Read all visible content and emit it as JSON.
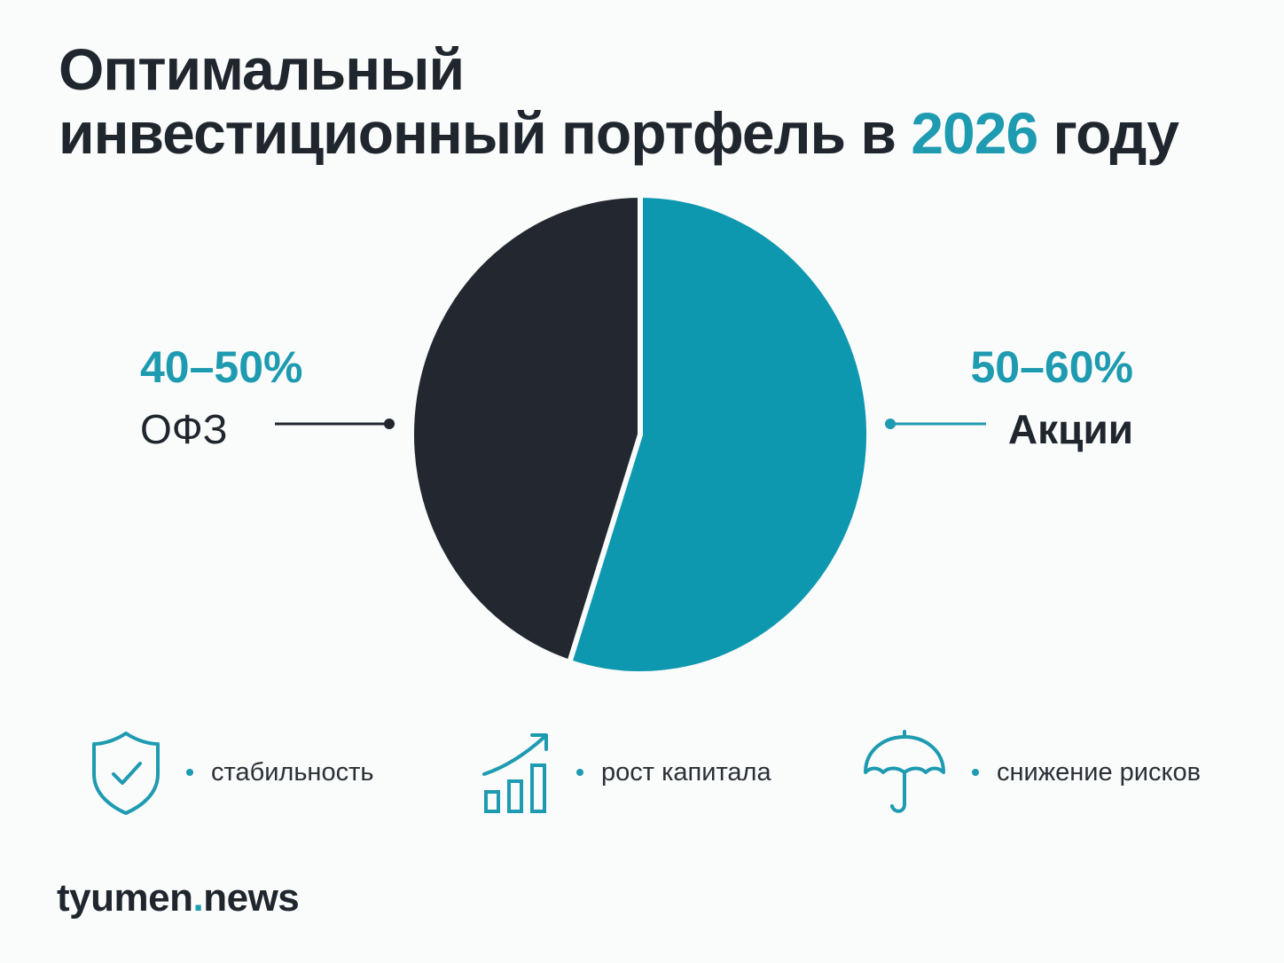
{
  "title": {
    "line1": "Оптимальный",
    "line2_before": "инвестиционный портфель в ",
    "line2_accent": "2026",
    "line2_after": " году"
  },
  "chart_data": {
    "type": "pie",
    "slices": [
      {
        "label": "Акции",
        "range_label": "50–60%",
        "value": 55,
        "color": "#0e98b0"
      },
      {
        "label": "ОФЗ",
        "range_label": "40–50%",
        "value": 45,
        "color": "#232830"
      }
    ],
    "start_angle": "top, clockwise",
    "legend": "leader lines, left and right"
  },
  "features": [
    {
      "icon": "shield-check-icon",
      "label": "стабильность"
    },
    {
      "icon": "growth-chart-icon",
      "label": "рост капитала"
    },
    {
      "icon": "umbrella-icon",
      "label": "снижение рисков"
    }
  ],
  "brand": {
    "name_before": "tyumen",
    "dot": ".",
    "name_after": "news"
  },
  "colors": {
    "accent": "#1e9bb1",
    "dark": "#1f262d",
    "background": "#fafbfb"
  }
}
